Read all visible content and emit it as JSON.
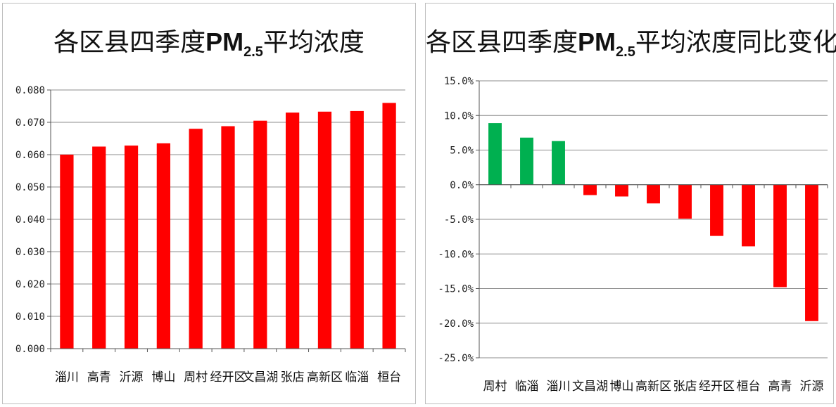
{
  "chart_data": [
    {
      "type": "bar",
      "title": {
        "main": "各区县四季度",
        "pm": "PM",
        "sub": "2.5",
        "rest": "平均浓度"
      },
      "categories": [
        "淄川",
        "高青",
        "沂源",
        "博山",
        "周村",
        "经开区",
        "文昌湖",
        "张店",
        "高新区",
        "临淄",
        "桓台"
      ],
      "values": [
        0.06,
        0.0625,
        0.0628,
        0.0635,
        0.068,
        0.0688,
        0.0705,
        0.073,
        0.0733,
        0.0735,
        0.076
      ],
      "ylim": [
        0,
        0.08
      ],
      "yticks": [
        "0.000",
        "0.010",
        "0.020",
        "0.030",
        "0.040",
        "0.050",
        "0.060",
        "0.070",
        "0.080"
      ],
      "xlabel": "",
      "ylabel": "",
      "grid": true,
      "colors": {
        "bar": "#ff0000",
        "grid": "#8c8c8c"
      }
    },
    {
      "type": "bar",
      "title": {
        "main": "各区县四季度",
        "pm": "PM",
        "sub": "2.5",
        "rest": "平均浓度同比变化"
      },
      "categories": [
        "周村",
        "临淄",
        "淄川",
        "文昌湖",
        "博山",
        "高新区",
        "张店",
        "经开区",
        "桓台",
        "高青",
        "沂源"
      ],
      "values": [
        8.9,
        6.8,
        6.3,
        -1.5,
        -1.7,
        -2.7,
        -4.9,
        -7.4,
        -8.9,
        -14.8,
        -19.7
      ],
      "ylim": [
        -25,
        15
      ],
      "yticks": [
        "-25.0%",
        "-20.0%",
        "-15.0%",
        "-10.0%",
        "-5.0%",
        "0.0%",
        "5.0%",
        "10.0%",
        "15.0%"
      ],
      "xlabel": "",
      "ylabel": "",
      "grid": true,
      "colors": {
        "positive": "#00b050",
        "negative": "#ff0000",
        "grid": "#8c8c8c"
      }
    }
  ]
}
